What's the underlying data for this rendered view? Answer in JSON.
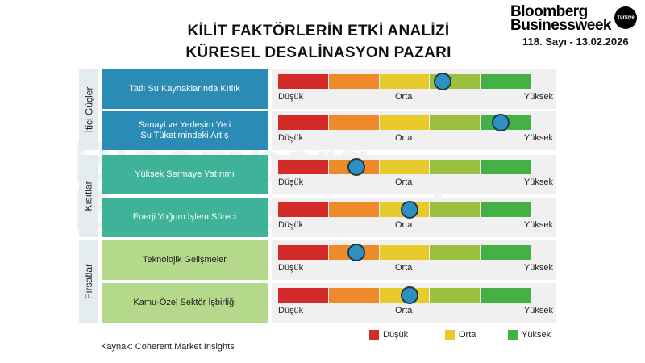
{
  "title_line1": "KİLİT FAKTÖRLERİN ETKİ ANALİZİ",
  "title_line2": "KÜRESEL DESALİNASYON PAZARI",
  "brand": {
    "line1": "Bloomberg",
    "line2": "Businessweek",
    "badge": "Türkiye",
    "issue": "118. Sayı - 13.02.2026"
  },
  "source": "Kaynak: Coherent Market Insights",
  "chart_data": {
    "type": "gauge",
    "scale_labels": {
      "low": "Düşük",
      "mid": "Orta",
      "high": "Yüksek"
    },
    "scale_colors": [
      "#d32a2a",
      "#ee8a2a",
      "#e8cb2a",
      "#9bbf3f",
      "#45b045"
    ],
    "knob_color": "#2e8fc0",
    "groups": [
      {
        "name": "İtici Güçler",
        "color": "#2a8bb5",
        "text_color": "#ffffff",
        "items": [
          {
            "label": "Tatlı Su Kaynaklarında Kıtlık",
            "value": 0.65
          },
          {
            "label": "Sanayi ve Yerleşim Yeri\nSu Tüketimindeki Artış",
            "value": 0.88
          }
        ]
      },
      {
        "name": "Kısıtlar",
        "color": "#3fb39a",
        "text_color": "#ffffff",
        "items": [
          {
            "label": "Yüksek Sermaye Yatırımı",
            "value": 0.31
          },
          {
            "label": "Enerji Yoğum İşlem Süreci",
            "value": 0.52
          }
        ]
      },
      {
        "name": "Fırsatlar",
        "color": "#b5d98a",
        "text_color": "#222222",
        "items": [
          {
            "label": "Teknolojik Gelişmeler",
            "value": 0.31
          },
          {
            "label": "Kamu-Özel Sektör İşbirliği",
            "value": 0.52
          }
        ]
      }
    ],
    "legend": [
      {
        "label": "Düşük",
        "color": "#d32a2a"
      },
      {
        "label": "Orta",
        "color": "#e8cb2a"
      },
      {
        "label": "Yüksek",
        "color": "#45b045"
      }
    ]
  }
}
